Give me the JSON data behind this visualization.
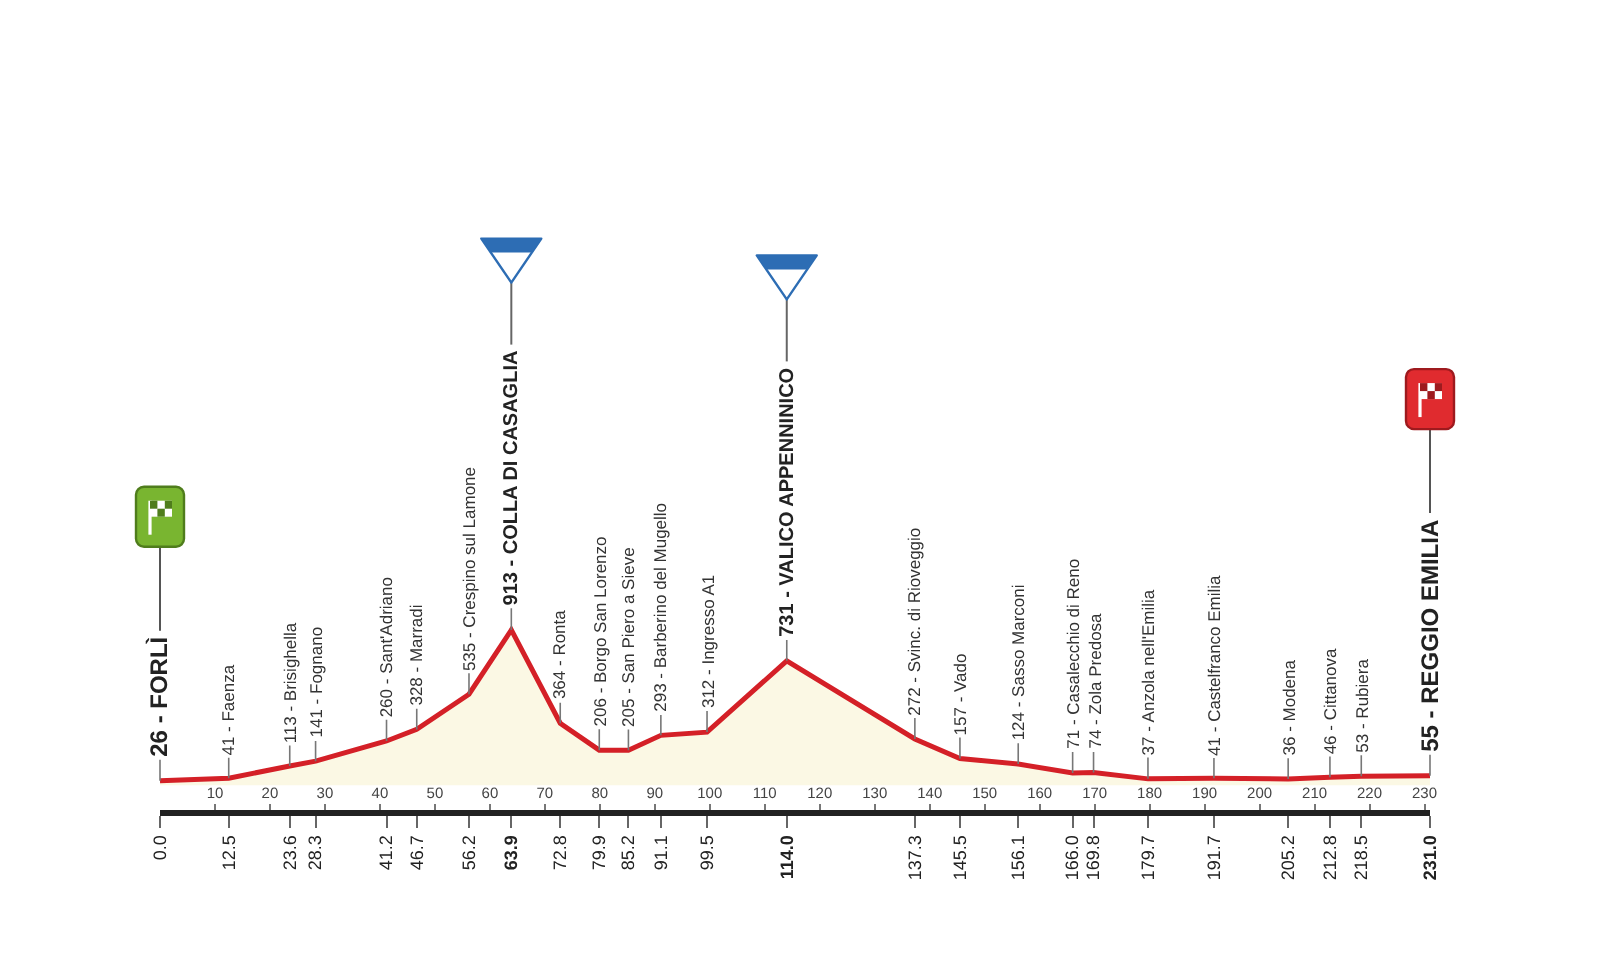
{
  "chart_data": {
    "type": "area",
    "x": [
      0,
      12.5,
      23.6,
      28.3,
      41.2,
      46.7,
      56.2,
      63.9,
      72.8,
      79.9,
      85.2,
      91.1,
      99.5,
      114,
      137.3,
      145.5,
      156.1,
      166,
      169.8,
      179.7,
      191.7,
      205.2,
      212.8,
      218.5,
      231
    ],
    "values": [
      26,
      41,
      113,
      141,
      260,
      328,
      535,
      913,
      364,
      206,
      205,
      293,
      312,
      731,
      272,
      157,
      124,
      71,
      74,
      37,
      41,
      36,
      46,
      53,
      55
    ],
    "color": "#d42027",
    "value_labels": [
      "26 - FORLÌ",
      "41 - Faenza",
      "113 - Brisighella",
      "141 - Fognano",
      "260 - Sant'Adriano",
      "328 - Marradi",
      "535 - Crespino sul Lamone",
      "913 - COLLA DI CASAGLIA",
      "364 - Ronta",
      "206 - Borgo San Lorenzo",
      "205 - San Piero a Sieve",
      "293 - Barberino del Mugello",
      "312 - Ingresso A1",
      "731 - VALICO APPENNINICO",
      "272 - Svinc. di Rioveggio",
      "157 - Vado",
      "124 - Sasso Marconi",
      "71 - Casalecchio di Reno",
      "74 - Zola Predosa",
      "37 - Anzola nell'Emilia",
      "41 - Castelfranco Emilia",
      "36 - Modena",
      "46 - Cittanova",
      "53 - Rubiera",
      "55 - REGGIO EMILIA"
    ],
    "xlim": [
      0,
      231
    ],
    "xticks": [
      {
        "value": 0,
        "label": "0.0"
      },
      12.5,
      23.6,
      28.3,
      41.2,
      46.7,
      56.2,
      63.9,
      72.8,
      79.9,
      85.2,
      91.1,
      99.5,
      {
        "value": 114,
        "label": "114.0"
      },
      137.3,
      145.5,
      156.1,
      {
        "value": 166,
        "label": "166.0"
      },
      169.8,
      179.7,
      191.7,
      205.2,
      212.8,
      218.5,
      {
        "value": 231,
        "label": "231.0"
      }
    ],
    "x2lim": [
      0,
      231
    ],
    "x2ticks": [
      10,
      20,
      30,
      40,
      50,
      60,
      70,
      80,
      90,
      100,
      110,
      120,
      130,
      140,
      150,
      160,
      170,
      180,
      190,
      200,
      210,
      220,
      230
    ],
    "tick_labels": "x"
  }
}
